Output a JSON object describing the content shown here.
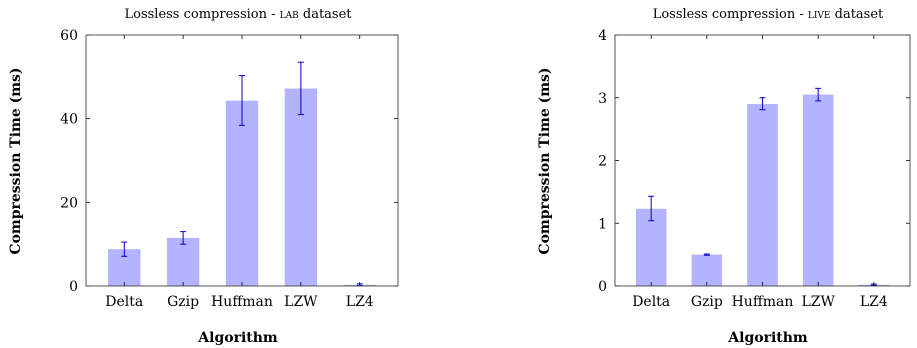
{
  "chart_data": [
    {
      "type": "bar",
      "title_prefix": "Lossless compression - ",
      "title_dataset": "lab",
      "title_suffix": " dataset",
      "xlabel": "Algorithm",
      "ylabel": "Compression Time (ms)",
      "categories": [
        "Delta",
        "Gzip",
        "Huffman",
        "LZW",
        "LZ4"
      ],
      "values": [
        8.8,
        11.5,
        44.3,
        47.2,
        0.3
      ],
      "error": [
        [
          7.1,
          10.5
        ],
        [
          10.0,
          13.0
        ],
        [
          38.4,
          50.3
        ],
        [
          41.0,
          53.5
        ],
        [
          0.1,
          0.5
        ]
      ],
      "ylim": [
        0,
        60
      ],
      "yticks": [
        0,
        20,
        40,
        60
      ],
      "bar_color": "#b3b3ff",
      "error_color": "#0000cc"
    },
    {
      "type": "bar",
      "title_prefix": "Lossless compression - ",
      "title_dataset": "live",
      "title_suffix": " dataset",
      "xlabel": "Algorithm",
      "ylabel": "Compression Time (ms)",
      "categories": [
        "Delta",
        "Gzip",
        "Huffman",
        "LZW",
        "LZ4"
      ],
      "values": [
        1.23,
        0.5,
        2.9,
        3.05,
        0.02
      ],
      "error": [
        [
          1.04,
          1.43
        ],
        [
          0.49,
          0.51
        ],
        [
          2.81,
          3.0
        ],
        [
          2.95,
          3.15
        ],
        [
          0.01,
          0.03
        ]
      ],
      "ylim": [
        0,
        4
      ],
      "yticks": [
        0,
        1,
        2,
        3,
        4
      ],
      "bar_color": "#b3b3ff",
      "error_color": "#0000cc"
    }
  ]
}
